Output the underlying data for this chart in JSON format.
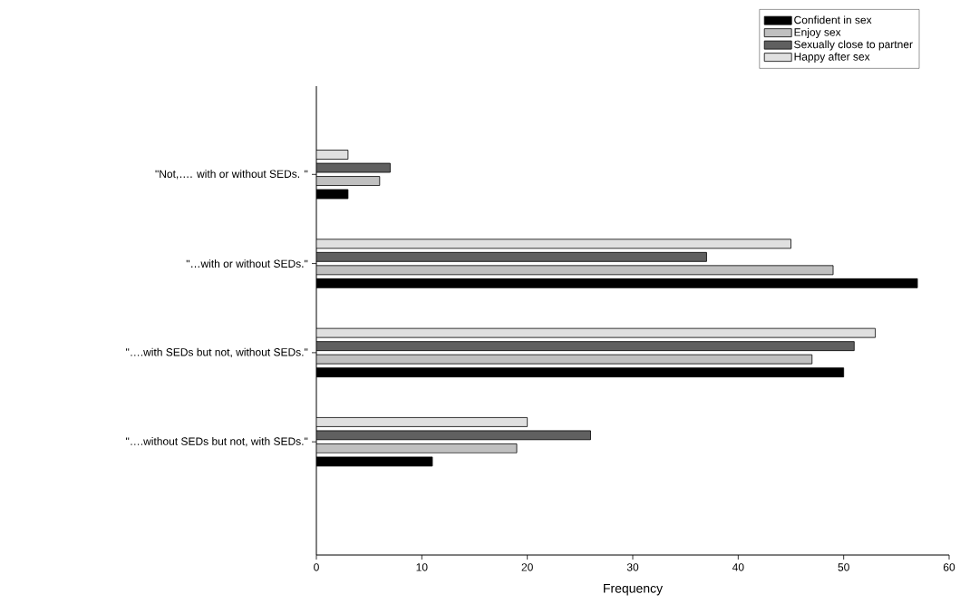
{
  "chart_data": {
    "type": "bar",
    "orientation": "horizontal",
    "xlabel": "Frequency",
    "categories": [
      "\"Not,…. with or without SEDs. \"",
      "\"…with or without SEDs.\"",
      "\"….with SEDs but not, without SEDs.\"",
      "\"….without SEDs but not, with SEDs.\""
    ],
    "series": [
      {
        "name": "Confident in sex",
        "color": "#000000",
        "values": [
          3,
          57,
          50,
          11
        ]
      },
      {
        "name": "Enjoy sex",
        "color": "#c0c0c0",
        "values": [
          6,
          49,
          47,
          19
        ]
      },
      {
        "name": "Sexually close to partner",
        "color": "#606060",
        "values": [
          7,
          37,
          51,
          26
        ]
      },
      {
        "name": "Happy after sex",
        "color": "#e0e0e0",
        "values": [
          3,
          45,
          53,
          20
        ]
      }
    ],
    "xlim": [
      0,
      60
    ],
    "xticks": [
      0,
      10,
      20,
      30,
      40,
      50,
      60
    ],
    "grid": false,
    "legend": "top right"
  }
}
